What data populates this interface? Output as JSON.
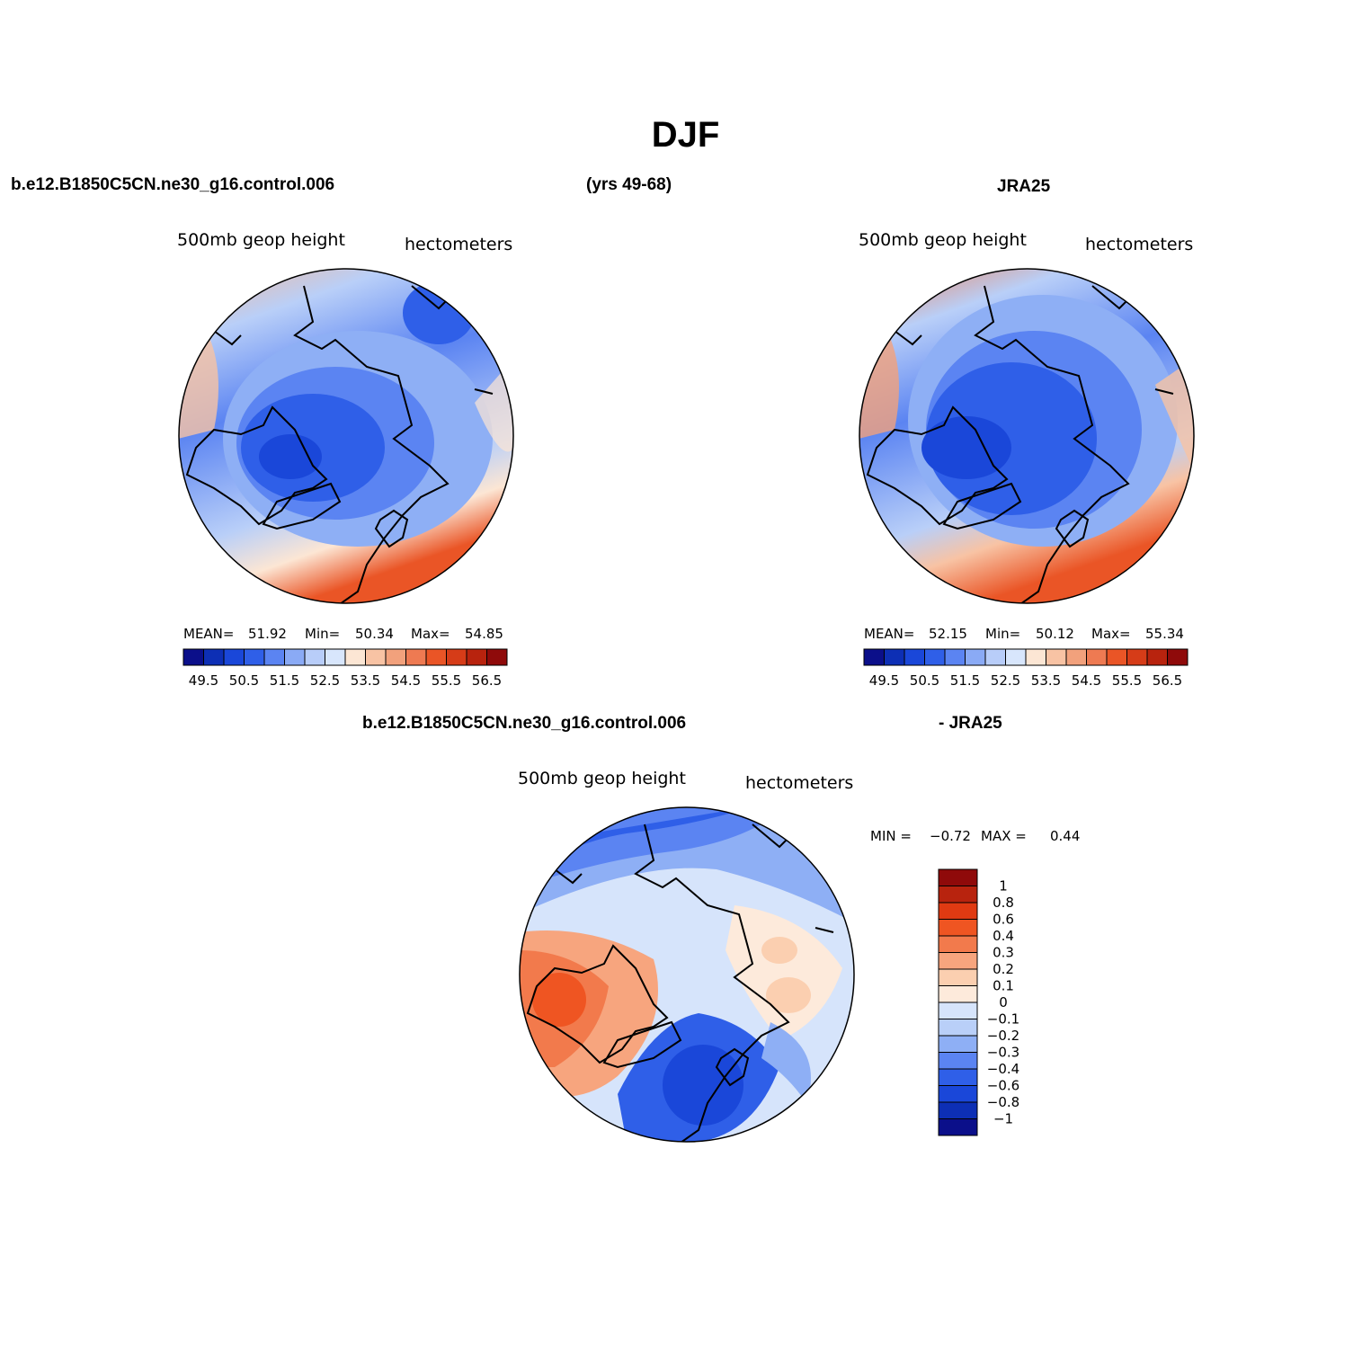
{
  "title": "DJF",
  "header": {
    "case_name": "b.e12.B1850C5CN.ne30_g16.control.006",
    "years": "(yrs 49-68)",
    "obs_name": "JRA25",
    "diff_case": "b.e12.B1850C5CN.ne30_g16.control.006",
    "diff_obs": "- JRA25"
  },
  "panels": {
    "model": {
      "variable": "500mb  geop height",
      "units": "hectometers",
      "mean_label": "MEAN=",
      "mean": "51.92",
      "min_label": "Min=",
      "min": "50.34",
      "max_label": "Max=",
      "max": "54.85"
    },
    "obs": {
      "variable": "500mb  geop height",
      "units": "hectometers",
      "mean_label": "MEAN=",
      "mean": "52.15",
      "min_label": "Min=",
      "min": "50.12",
      "max_label": "Max=",
      "max": "55.34"
    },
    "diff": {
      "variable": "500mb  geop height",
      "units": "hectometers",
      "min_label": "MIN =",
      "min": "−0.72",
      "max_label": "MAX =",
      "max": "0.44"
    }
  },
  "colorbar_abs": {
    "labels": [
      "49.5",
      "50.5",
      "51.5",
      "52.5",
      "53.5",
      "54.5",
      "55.5",
      "56.5"
    ],
    "colors": [
      "#0b0f8a",
      "#0d2fb5",
      "#1a47d9",
      "#2f5fe8",
      "#5b84f2",
      "#8aaaf5",
      "#b8cdf9",
      "#d8e6fc",
      "#fce6d4",
      "#f8c3a4",
      "#f2a17c",
      "#ee7a52",
      "#ea5526",
      "#d63c18",
      "#b8230e",
      "#8f0a0a"
    ]
  },
  "colorbar_diff": {
    "labels": [
      "1",
      "0.8",
      "0.6",
      "0.4",
      "0.3",
      "0.2",
      "0.1",
      "0",
      "−0.1",
      "−0.2",
      "−0.3",
      "−0.4",
      "−0.6",
      "−0.8",
      "−1"
    ],
    "colors": [
      "#8f0a0a",
      "#b8230e",
      "#e03a12",
      "#ef5522",
      "#f27a4c",
      "#f7a57e",
      "#fbcfb0",
      "#fdeadb",
      "#d6e4fb",
      "#b9cff8",
      "#8eaff5",
      "#5b84f2",
      "#2f5fe8",
      "#1a47d9",
      "#0d2fb5",
      "#0b0f8a"
    ]
  }
}
